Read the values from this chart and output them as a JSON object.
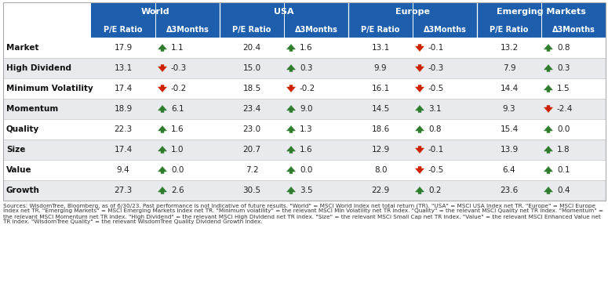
{
  "header_bg": "#1e5fad",
  "header_text": "#ffffff",
  "row_bg_even": "#ffffff",
  "row_bg_odd": "#e8eaed",
  "regions": [
    "World",
    "USA",
    "Europe",
    "Emerging Markets"
  ],
  "rows": [
    {
      "label": "Market",
      "world_pe": "17.9",
      "world_d3": 1.1,
      "usa_pe": "20.4",
      "usa_d3": 1.6,
      "eur_pe": "13.1",
      "eur_d3": -0.1,
      "em_pe": "13.2",
      "em_d3": 0.8
    },
    {
      "label": "High Dividend",
      "world_pe": "13.1",
      "world_d3": -0.3,
      "usa_pe": "15.0",
      "usa_d3": 0.3,
      "eur_pe": "9.9",
      "eur_d3": -0.3,
      "em_pe": "7.9",
      "em_d3": 0.3
    },
    {
      "label": "Minimum Volatility",
      "world_pe": "17.4",
      "world_d3": -0.2,
      "usa_pe": "18.5",
      "usa_d3": -0.2,
      "eur_pe": "16.1",
      "eur_d3": -0.5,
      "em_pe": "14.4",
      "em_d3": 1.5
    },
    {
      "label": "Momentum",
      "world_pe": "18.9",
      "world_d3": 6.1,
      "usa_pe": "23.4",
      "usa_d3": 9.0,
      "eur_pe": "14.5",
      "eur_d3": 3.1,
      "em_pe": "9.3",
      "em_d3": -2.4
    },
    {
      "label": "Quality",
      "world_pe": "22.3",
      "world_d3": 1.6,
      "usa_pe": "23.0",
      "usa_d3": 1.3,
      "eur_pe": "18.6",
      "eur_d3": 0.8,
      "em_pe": "15.4",
      "em_d3": 0.0
    },
    {
      "label": "Size",
      "world_pe": "17.4",
      "world_d3": 1.0,
      "usa_pe": "20.7",
      "usa_d3": 1.6,
      "eur_pe": "12.9",
      "eur_d3": -0.1,
      "em_pe": "13.9",
      "em_d3": 1.8
    },
    {
      "label": "Value",
      "world_pe": "9.4",
      "world_d3": 0.0,
      "usa_pe": "7.2",
      "usa_d3": 0.0,
      "eur_pe": "8.0",
      "eur_d3": -0.5,
      "em_pe": "6.4",
      "em_d3": 0.1
    },
    {
      "label": "Growth",
      "world_pe": "27.3",
      "world_d3": 2.6,
      "usa_pe": "30.5",
      "usa_d3": 3.5,
      "eur_pe": "22.9",
      "eur_d3": 0.2,
      "em_pe": "23.6",
      "em_d3": 0.4
    }
  ],
  "footnote": "Sources: WisdomTree, Bloomberg, as of 6/30/23. Past performance is not indicative of future results. \"World\" = MSCI World Index net total return (TR). \"USA\" = MSCI USA Index net TR. \"Europe\" = MSCI Europe Index net TR. \"Emerging Markets\" = MSCI Emerging Markets Index net TR. \"Minimum volatility\" = the relevant MSCI Min Volatility net TR index. \"Quality\" = the relevant MSCI Quality net TR index. \"Momentum\" = the relevant MSCI Momentum net TR index. \"High Dividend\" = the relevant MSCI High Dividend net TR index. \"Size\" = the relevant MSCI Small Cap net TR index. \"Value\" = the relevant MSCI Enhanced Value net TR index. \"WisdomTree Quality\" = the relevant WisdomTree Quality Dividend Growth Index.",
  "up_color": "#2d7d2d",
  "down_color": "#cc2200",
  "col_sep_color": "#ffffff",
  "row_line_color": "#cccccc",
  "border_color": "#aaaaaa"
}
